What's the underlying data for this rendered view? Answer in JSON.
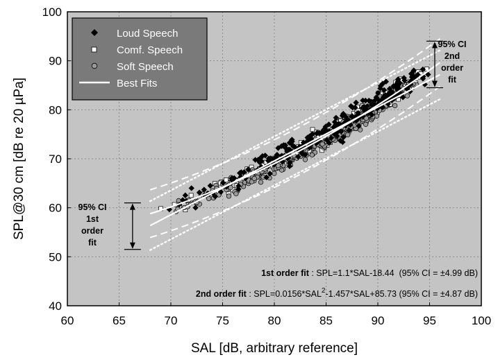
{
  "chart_data": {
    "type": "scatter",
    "title": "",
    "xlabel": "SAL [dB, arbitrary reference]",
    "ylabel": "SPL@30 cm [dB re 20 µPa]",
    "xlim": [
      60,
      100
    ],
    "ylim": [
      40,
      100
    ],
    "xticks": [
      60,
      65,
      70,
      75,
      80,
      85,
      90,
      95,
      100
    ],
    "yticks": [
      40,
      50,
      60,
      70,
      80,
      90,
      100
    ],
    "grid": true,
    "legend_position": "top-left",
    "colors": {
      "plot_background": "#c4c4c4",
      "legend_background": "#7a7a7a",
      "grid": "#8a8a8a",
      "fit_line": "#ffffff",
      "loud_marker": "#000000",
      "comf_marker": "#ffffff",
      "soft_marker": "#9a9a9a"
    },
    "series": [
      {
        "name": "Loud Speech",
        "marker": "diamond",
        "x_range": [
          68,
          95.5
        ],
        "noise": 3.2,
        "count": 260
      },
      {
        "name": "Comf. Speech",
        "marker": "square",
        "x_range": [
          67.5,
          95
        ],
        "noise": 2.4,
        "count": 330
      },
      {
        "name": "Soft Speech",
        "marker": "circle",
        "x_range": [
          67.5,
          94
        ],
        "noise": 2.2,
        "count": 330
      },
      {
        "name": "Best Fits",
        "marker": "line"
      }
    ],
    "fits": {
      "first_order": {
        "slope": 1.1,
        "intercept": -18.44,
        "ci": 4.99,
        "x_range": [
          68,
          96
        ]
      },
      "second_order": {
        "a": 0.0156,
        "b": -1.457,
        "c": 85.73,
        "ci": 4.87,
        "x_range": [
          68,
          96
        ]
      }
    },
    "annotations": {
      "ci_2nd": {
        "lines": [
          "95% CI",
          "2nd",
          "order",
          "fit"
        ],
        "x": 95.5,
        "y_top": 94,
        "y_bottom": 84.5
      },
      "ci_1st": {
        "lines": [
          "95% CI",
          "1st",
          "order",
          "fit"
        ],
        "x": 66.3,
        "y_top": 61,
        "y_bottom": 51.5
      },
      "eq1_label": "1st order fit",
      "eq1_text": " : SPL=1.1*SAL-18.44  (95% CI = ±4.99 dB)",
      "eq2_label": "2nd order fit",
      "eq2_pre": " : SPL=0.0156*SAL",
      "eq2_sup": "2",
      "eq2_post": "-1.457*SAL+85.73 (95% CI = ±4.87 dB)"
    }
  }
}
